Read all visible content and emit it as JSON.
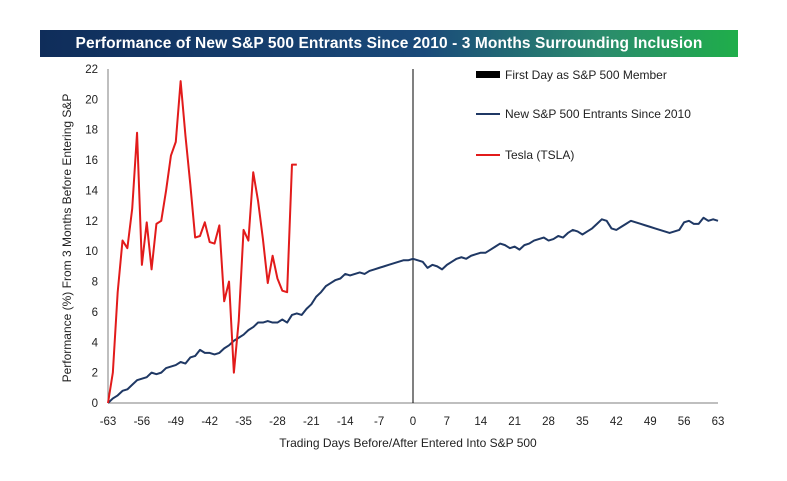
{
  "chart_data": {
    "type": "line",
    "title": "Performance of New S&P 500 Entrants Since 2010 - 3 Months Surrounding Inclusion",
    "xlabel": "Trading Days Before/After Entered Into S&P 500",
    "ylabel": "Performance (%) From 3 Months Before Entering S&P",
    "xlim": [
      -63,
      63
    ],
    "ylim": [
      0,
      22
    ],
    "x_ticks": [
      -63,
      -56,
      -49,
      -42,
      -35,
      -28,
      -21,
      -14,
      -7,
      0,
      7,
      14,
      21,
      28,
      35,
      42,
      49,
      56,
      63
    ],
    "y_ticks": [
      0,
      2,
      4,
      6,
      8,
      10,
      12,
      14,
      16,
      18,
      20,
      22
    ],
    "grid": false,
    "legend_position": "top-right",
    "reference_line": {
      "name": "First Day as S&P 500 Member",
      "x": 0,
      "color": "#000000"
    },
    "series": [
      {
        "name": "New S&P 500 Entrants Since 2010",
        "color": "#1f3864",
        "x": [
          -63,
          -62,
          -61,
          -60,
          -59,
          -58,
          -57,
          -56,
          -55,
          -54,
          -53,
          -52,
          -51,
          -50,
          -49,
          -48,
          -47,
          -46,
          -45,
          -44,
          -43,
          -42,
          -41,
          -40,
          -39,
          -38,
          -37,
          -36,
          -35,
          -34,
          -33,
          -32,
          -31,
          -30,
          -29,
          -28,
          -27,
          -26,
          -25,
          -24,
          -23,
          -22,
          -21,
          -20,
          -19,
          -18,
          -17,
          -16,
          -15,
          -14,
          -13,
          -12,
          -11,
          -10,
          -9,
          -8,
          -7,
          -6,
          -5,
          -4,
          -3,
          -2,
          -1,
          0,
          1,
          2,
          3,
          4,
          5,
          6,
          7,
          8,
          9,
          10,
          11,
          12,
          13,
          14,
          15,
          16,
          17,
          18,
          19,
          20,
          21,
          22,
          23,
          24,
          25,
          26,
          27,
          28,
          29,
          30,
          31,
          32,
          33,
          34,
          35,
          36,
          37,
          38,
          39,
          40,
          41,
          42,
          43,
          44,
          45,
          46,
          47,
          48,
          49,
          50,
          51,
          52,
          53,
          54,
          55,
          56,
          57,
          58,
          59,
          60,
          61,
          62,
          63
        ],
        "values": [
          0.0,
          0.3,
          0.5,
          0.8,
          0.9,
          1.2,
          1.5,
          1.6,
          1.7,
          2.0,
          1.9,
          2.0,
          2.3,
          2.4,
          2.5,
          2.7,
          2.6,
          3.0,
          3.1,
          3.5,
          3.3,
          3.3,
          3.2,
          3.3,
          3.6,
          3.8,
          4.1,
          4.3,
          4.5,
          4.8,
          5.0,
          5.3,
          5.3,
          5.4,
          5.3,
          5.3,
          5.5,
          5.3,
          5.8,
          5.9,
          5.8,
          6.2,
          6.5,
          7.0,
          7.3,
          7.7,
          7.9,
          8.1,
          8.2,
          8.5,
          8.4,
          8.5,
          8.6,
          8.5,
          8.7,
          8.8,
          8.9,
          9.0,
          9.1,
          9.2,
          9.3,
          9.4,
          9.4,
          9.5,
          9.4,
          9.3,
          8.9,
          9.1,
          9.0,
          8.8,
          9.1,
          9.3,
          9.5,
          9.6,
          9.5,
          9.7,
          9.8,
          9.9,
          9.9,
          10.1,
          10.3,
          10.5,
          10.4,
          10.2,
          10.3,
          10.1,
          10.4,
          10.5,
          10.7,
          10.8,
          10.9,
          10.7,
          10.8,
          11.0,
          10.9,
          11.2,
          11.4,
          11.3,
          11.1,
          11.3,
          11.5,
          11.8,
          12.1,
          12.0,
          11.5,
          11.4,
          11.6,
          11.8,
          12.0,
          11.9,
          11.8,
          11.7,
          11.6,
          11.5,
          11.4,
          11.3,
          11.2,
          11.3,
          11.4,
          11.9,
          12.0,
          11.8,
          11.8,
          12.2,
          12.0,
          12.1,
          12.0
        ]
      },
      {
        "name": "Tesla (TSLA)",
        "color": "#e21b1b",
        "x": [
          -63,
          -62,
          -61,
          -60,
          -59,
          -58,
          -57,
          -56,
          -55,
          -54,
          -53,
          -52,
          -51,
          -50,
          -49,
          -48,
          -47,
          -46,
          -45,
          -44,
          -43,
          -42,
          -41,
          -40,
          -39,
          -38,
          -37,
          -36,
          -35,
          -34,
          -33,
          -32,
          -31,
          -30,
          -29,
          -28,
          -27,
          -26,
          -25,
          -24
        ],
        "values": [
          0.0,
          2.0,
          7.3,
          10.7,
          10.2,
          12.8,
          17.8,
          9.1,
          11.9,
          8.8,
          11.8,
          12.0,
          14.0,
          16.3,
          17.2,
          21.2,
          17.6,
          14.4,
          10.9,
          11.0,
          11.9,
          10.6,
          10.5,
          11.7,
          6.7,
          8.0,
          2.0,
          5.4,
          11.4,
          10.7,
          15.2,
          13.3,
          10.8,
          7.9,
          9.7,
          8.2,
          7.4,
          7.3,
          15.7,
          15.7
        ]
      }
    ]
  }
}
